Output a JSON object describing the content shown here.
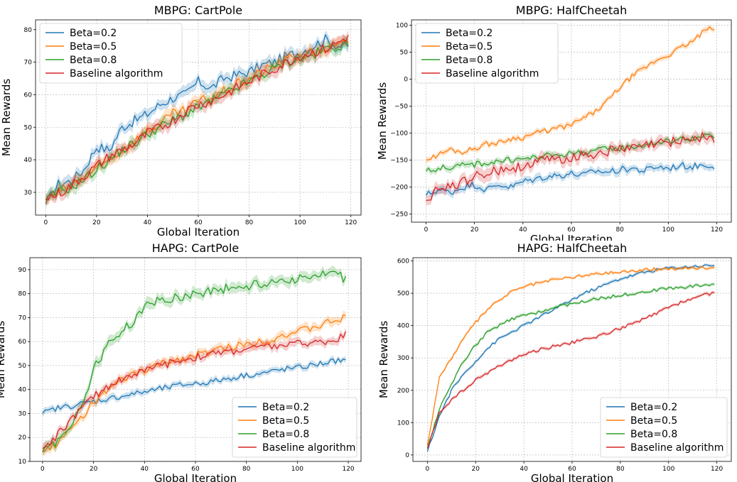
{
  "colors": {
    "beta02": "#1f77b4",
    "beta05": "#ff7f0e",
    "beta08": "#2ca02c",
    "baseline": "#d62728"
  },
  "chart_data": [
    {
      "type": "line",
      "title": "MBPG: CartPole",
      "xlabel": "Global Iteration",
      "ylabel": "Mean Rewards",
      "xlim": [
        -4,
        124
      ],
      "ylim": [
        23,
        83
      ],
      "xticks": [
        0,
        20,
        40,
        60,
        80,
        100,
        120
      ],
      "yticks": [
        30,
        40,
        50,
        60,
        70,
        80
      ],
      "grid": true,
      "legend": "top-left",
      "series": [
        {
          "name": "Beta=0.2",
          "color_key": "beta02",
          "band": 2.0,
          "x": [
            0,
            5,
            10,
            15,
            20,
            25,
            30,
            35,
            40,
            45,
            50,
            55,
            60,
            65,
            70,
            75,
            80,
            85,
            90,
            95,
            100,
            105,
            110,
            115,
            119
          ],
          "y": [
            26.5,
            32.5,
            33.5,
            37,
            44,
            43,
            50,
            52,
            54,
            57,
            59,
            60,
            64,
            62,
            65,
            66,
            67,
            69,
            70,
            72,
            73,
            75,
            77,
            75,
            75
          ]
        },
        {
          "name": "Beta=0.5",
          "color_key": "beta05",
          "band": 2.0,
          "x": [
            0,
            5,
            10,
            15,
            20,
            25,
            30,
            35,
            40,
            45,
            50,
            55,
            60,
            65,
            70,
            75,
            80,
            85,
            90,
            95,
            100,
            105,
            110,
            115,
            119
          ],
          "y": [
            27.5,
            30,
            32,
            35,
            37,
            40,
            43,
            46,
            49,
            51,
            54,
            55,
            58,
            59,
            61,
            63,
            65,
            67,
            69,
            71,
            72,
            73,
            74,
            75,
            76
          ]
        },
        {
          "name": "Beta=0.8",
          "color_key": "beta08",
          "band": 2.0,
          "x": [
            0,
            5,
            10,
            15,
            20,
            25,
            30,
            35,
            40,
            45,
            50,
            55,
            60,
            65,
            70,
            75,
            80,
            85,
            90,
            95,
            100,
            105,
            110,
            115,
            119
          ],
          "y": [
            27.5,
            30,
            31.5,
            34,
            37,
            40,
            43,
            45,
            48,
            50,
            52,
            54,
            56,
            58,
            60,
            62,
            64,
            66,
            68,
            70,
            71,
            72,
            74,
            75,
            75
          ]
        },
        {
          "name": "Baseline algorithm",
          "color_key": "baseline",
          "band": 2.0,
          "x": [
            0,
            5,
            10,
            15,
            20,
            25,
            30,
            35,
            40,
            45,
            50,
            55,
            60,
            65,
            70,
            75,
            80,
            85,
            90,
            95,
            100,
            105,
            110,
            115,
            119
          ],
          "y": [
            28,
            29.5,
            32,
            35,
            38,
            41,
            43,
            45,
            48,
            50,
            52,
            55,
            57,
            58,
            60,
            62,
            64,
            66,
            68,
            70,
            72,
            73,
            74,
            76,
            78
          ]
        }
      ]
    },
    {
      "type": "line",
      "title": "MBPG: HalfCheetah",
      "xlabel": "Global Iteration",
      "ylabel": "Mean Rewards",
      "xlim": [
        -6,
        126
      ],
      "ylim": [
        -265,
        110
      ],
      "xticks": [
        0,
        20,
        40,
        60,
        80,
        100,
        120
      ],
      "yticks": [
        -250,
        -200,
        -150,
        -100,
        -50,
        0,
        50,
        100
      ],
      "grid": true,
      "legend": "top-left",
      "series": [
        {
          "name": "Beta=0.2",
          "color_key": "beta02",
          "band": 8,
          "x": [
            0,
            5,
            10,
            15,
            20,
            25,
            30,
            35,
            40,
            45,
            50,
            55,
            60,
            65,
            70,
            75,
            80,
            85,
            90,
            95,
            100,
            105,
            110,
            115,
            119
          ],
          "y": [
            -215,
            -205,
            -210,
            -200,
            -195,
            -205,
            -195,
            -200,
            -190,
            -185,
            -180,
            -178,
            -175,
            -178,
            -170,
            -172,
            -168,
            -165,
            -170,
            -162,
            -165,
            -160,
            -162,
            -158,
            -160
          ]
        },
        {
          "name": "Beta=0.5",
          "color_key": "beta05",
          "band": 6,
          "x": [
            0,
            5,
            10,
            15,
            20,
            25,
            30,
            35,
            40,
            45,
            50,
            55,
            60,
            65,
            70,
            75,
            80,
            85,
            90,
            95,
            100,
            105,
            110,
            115,
            119
          ],
          "y": [
            -150,
            -140,
            -130,
            -135,
            -128,
            -120,
            -118,
            -110,
            -108,
            -100,
            -95,
            -90,
            -85,
            -72,
            -60,
            -40,
            -15,
            5,
            20,
            35,
            45,
            58,
            70,
            90,
            95
          ]
        },
        {
          "name": "Beta=0.8",
          "color_key": "beta08",
          "band": 7,
          "x": [
            0,
            5,
            10,
            15,
            20,
            25,
            30,
            35,
            40,
            45,
            50,
            55,
            60,
            65,
            70,
            75,
            80,
            85,
            90,
            95,
            100,
            105,
            110,
            115,
            119
          ],
          "y": [
            -170,
            -165,
            -163,
            -160,
            -158,
            -155,
            -152,
            -150,
            -148,
            -145,
            -142,
            -140,
            -138,
            -135,
            -132,
            -130,
            -128,
            -125,
            -122,
            -118,
            -115,
            -112,
            -110,
            -107,
            -105
          ]
        },
        {
          "name": "Baseline algorithm",
          "color_key": "baseline",
          "band": 12,
          "x": [
            0,
            5,
            10,
            15,
            20,
            25,
            30,
            35,
            40,
            45,
            50,
            55,
            60,
            65,
            70,
            75,
            80,
            85,
            90,
            95,
            100,
            105,
            110,
            115,
            119
          ],
          "y": [
            -225,
            -205,
            -200,
            -190,
            -180,
            -175,
            -170,
            -165,
            -160,
            -155,
            -150,
            -148,
            -145,
            -140,
            -138,
            -133,
            -130,
            -128,
            -124,
            -120,
            -117,
            -112,
            -110,
            -106,
            -112
          ]
        }
      ]
    },
    {
      "type": "line",
      "title": "HAPG: CartPole",
      "xlabel": "Global Iteration",
      "ylabel": "Mean Rewards",
      "xlim": [
        -5,
        125
      ],
      "ylim": [
        10,
        95
      ],
      "xticks": [
        0,
        20,
        40,
        60,
        80,
        100,
        120
      ],
      "yticks": [
        10,
        20,
        30,
        40,
        50,
        60,
        70,
        80,
        90
      ],
      "grid": true,
      "legend": "bottom-right",
      "series": [
        {
          "name": "Beta=0.2",
          "color_key": "beta02",
          "band": 1.5,
          "x": [
            0,
            5,
            10,
            15,
            20,
            25,
            30,
            35,
            40,
            45,
            50,
            55,
            60,
            65,
            70,
            75,
            80,
            85,
            90,
            95,
            100,
            105,
            110,
            115,
            119
          ],
          "y": [
            30,
            32,
            33,
            34,
            35,
            36,
            37,
            38,
            39,
            40,
            41,
            42,
            42.5,
            43,
            44,
            45,
            46,
            46.5,
            47.5,
            48.5,
            49,
            50,
            51,
            52,
            52
          ]
        },
        {
          "name": "Beta=0.5",
          "color_key": "beta05",
          "band": 2,
          "x": [
            0,
            5,
            10,
            15,
            20,
            25,
            30,
            35,
            40,
            45,
            50,
            55,
            60,
            65,
            70,
            75,
            80,
            85,
            90,
            95,
            100,
            105,
            110,
            115,
            119
          ],
          "y": [
            14,
            17,
            22,
            28,
            35,
            39,
            43,
            46,
            48,
            50,
            52,
            53,
            54,
            55.5,
            57,
            58,
            59,
            60,
            61,
            63,
            64,
            65.5,
            67,
            69,
            70
          ]
        },
        {
          "name": "Beta=0.8",
          "color_key": "beta08",
          "band": 2.5,
          "x": [
            0,
            5,
            10,
            15,
            20,
            25,
            30,
            35,
            40,
            45,
            50,
            55,
            60,
            65,
            70,
            75,
            80,
            85,
            90,
            95,
            100,
            105,
            110,
            115,
            119
          ],
          "y": [
            14,
            18,
            24,
            32,
            48,
            58,
            63,
            68,
            74,
            77,
            78,
            79,
            80,
            81,
            82,
            82.5,
            83,
            84,
            85,
            86,
            86,
            87,
            87.5,
            88,
            86
          ]
        },
        {
          "name": "Baseline algorithm",
          "color_key": "baseline",
          "band": 2,
          "x": [
            0,
            5,
            10,
            15,
            20,
            25,
            30,
            35,
            40,
            45,
            50,
            55,
            60,
            65,
            70,
            75,
            80,
            85,
            90,
            95,
            100,
            105,
            110,
            115,
            119
          ],
          "y": [
            15.5,
            20,
            26,
            32,
            37,
            41,
            44,
            46,
            48,
            49.5,
            51,
            52.5,
            53.5,
            54.5,
            55.5,
            56,
            57,
            57.5,
            58,
            58.5,
            59,
            59.5,
            60,
            61,
            63
          ]
        }
      ]
    },
    {
      "type": "line",
      "title": "HAPG: HalfCheetah",
      "xlabel": "Global Iteration",
      "ylabel": "Mean Rewards",
      "xlim": [
        -6,
        126
      ],
      "ylim": [
        -20,
        610
      ],
      "xticks": [
        0,
        20,
        40,
        60,
        80,
        100,
        120
      ],
      "yticks": [
        0,
        100,
        200,
        300,
        400,
        500,
        600
      ],
      "grid": true,
      "legend": "bottom-right",
      "series": [
        {
          "name": "Beta=0.2",
          "color_key": "beta02",
          "band": 6,
          "x": [
            0,
            5,
            10,
            15,
            20,
            25,
            30,
            35,
            40,
            45,
            50,
            55,
            60,
            65,
            70,
            75,
            80,
            85,
            90,
            95,
            100,
            105,
            110,
            115,
            119
          ],
          "y": [
            10,
            120,
            200,
            250,
            290,
            330,
            360,
            380,
            400,
            420,
            440,
            460,
            480,
            500,
            515,
            530,
            545,
            555,
            565,
            572,
            578,
            580,
            583,
            585,
            587
          ]
        },
        {
          "name": "Beta=0.5",
          "color_key": "beta05",
          "band": 6,
          "x": [
            0,
            5,
            10,
            15,
            20,
            25,
            30,
            35,
            40,
            45,
            50,
            55,
            60,
            65,
            70,
            75,
            80,
            85,
            90,
            95,
            100,
            105,
            110,
            115,
            119
          ],
          "y": [
            30,
            240,
            300,
            360,
            410,
            450,
            480,
            505,
            520,
            530,
            538,
            545,
            550,
            555,
            560,
            563,
            566,
            569,
            572,
            574,
            576,
            577,
            578,
            579,
            580
          ]
        },
        {
          "name": "Beta=0.8",
          "color_key": "beta08",
          "band": 6,
          "x": [
            0,
            5,
            10,
            15,
            20,
            25,
            30,
            35,
            40,
            45,
            50,
            55,
            60,
            65,
            70,
            75,
            80,
            85,
            90,
            95,
            100,
            105,
            110,
            115,
            119
          ],
          "y": [
            20,
            140,
            220,
            290,
            340,
            380,
            400,
            420,
            430,
            440,
            450,
            460,
            468,
            475,
            482,
            488,
            494,
            500,
            505,
            510,
            515,
            518,
            522,
            526,
            528
          ]
        },
        {
          "name": "Baseline algorithm",
          "color_key": "baseline",
          "band": 6,
          "x": [
            0,
            5,
            10,
            15,
            20,
            25,
            30,
            35,
            40,
            45,
            50,
            55,
            60,
            65,
            70,
            75,
            80,
            85,
            90,
            95,
            100,
            105,
            110,
            115,
            119
          ],
          "y": [
            20,
            130,
            170,
            200,
            230,
            255,
            275,
            295,
            310,
            322,
            332,
            340,
            348,
            356,
            365,
            378,
            392,
            405,
            420,
            438,
            455,
            472,
            485,
            495,
            502
          ]
        }
      ]
    }
  ]
}
